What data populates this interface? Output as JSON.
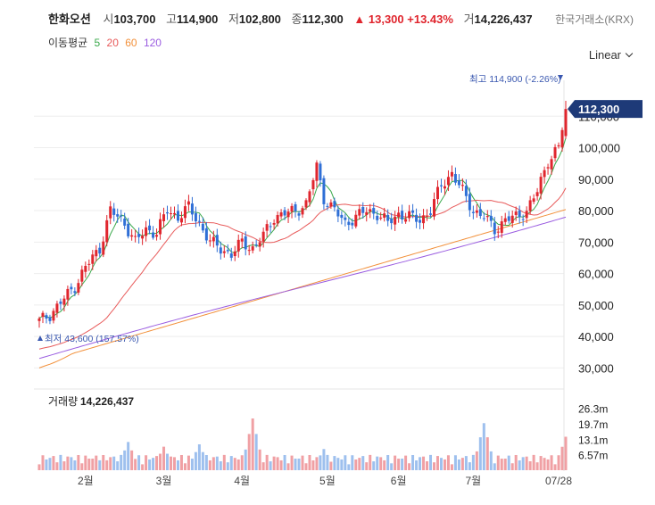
{
  "header": {
    "name": "한화오션",
    "open_label": "시",
    "open": "103,700",
    "high_label": "고",
    "high": "114,900",
    "low_label": "저",
    "low": "102,800",
    "close_label": "종",
    "close": "112,300",
    "change": "▲ 13,300 +13.43%",
    "volume_label": "거",
    "volume": "14,226,437"
  },
  "exchange": "한국거래소(KRX)",
  "scale": {
    "label": "Linear"
  },
  "ma_legend": {
    "title": "이동평균",
    "items": [
      "5",
      "20",
      "60",
      "120"
    ]
  },
  "colors": {
    "up": "#e0262e",
    "down": "#2f6fd6",
    "ma5": "#3aa94b",
    "ma20": "#e85b5b",
    "ma60": "#f2903a",
    "ma120": "#9a5ce0",
    "badge": "#1e3a78",
    "annot": "#3a58b0"
  },
  "chart_data": {
    "type": "candlestick",
    "title": "한화오션",
    "ylim": [
      25000,
      120000
    ],
    "y_ticks": [
      30000,
      40000,
      50000,
      60000,
      70000,
      80000,
      90000,
      100000,
      110000
    ],
    "y_tick_labels": [
      "30,000",
      "40,000",
      "50,000",
      "60,000",
      "70,000",
      "80,000",
      "90,000",
      "100,000",
      "110,000"
    ],
    "x_tick_labels": [
      "2월",
      "3월",
      "4월",
      "5월",
      "6월",
      "7월",
      "07/28"
    ],
    "current_price_label": "112,300",
    "annotations": {
      "max": "최고 114,900 (-2.26%)",
      "min": "최저 43,600 (157.57%)"
    },
    "series_close_points": [
      [
        0,
        44800
      ],
      [
        3,
        47000
      ],
      [
        7,
        52000
      ],
      [
        10,
        56000
      ],
      [
        13,
        62000
      ],
      [
        17,
        68000
      ],
      [
        20,
        80000
      ],
      [
        24,
        76000
      ],
      [
        27,
        70000
      ],
      [
        30,
        74000
      ],
      [
        33,
        73000
      ],
      [
        36,
        80000
      ],
      [
        39,
        78000
      ],
      [
        42,
        81000
      ],
      [
        45,
        76000
      ],
      [
        48,
        70000
      ],
      [
        51,
        68000
      ],
      [
        54,
        66000
      ],
      [
        57,
        70000
      ],
      [
        60,
        68000
      ],
      [
        63,
        72000
      ],
      [
        66,
        78000
      ],
      [
        69,
        79000
      ],
      [
        72,
        80000
      ],
      [
        75,
        82000
      ],
      [
        78,
        94000
      ],
      [
        80,
        84000
      ],
      [
        83,
        80000
      ],
      [
        86,
        76000
      ],
      [
        89,
        78000
      ],
      [
        92,
        80000
      ],
      [
        95,
        79000
      ],
      [
        98,
        76000
      ],
      [
        101,
        79000
      ],
      [
        104,
        78000
      ],
      [
        107,
        77000
      ],
      [
        110,
        80000
      ],
      [
        113,
        88000
      ],
      [
        116,
        92000
      ],
      [
        119,
        86000
      ],
      [
        122,
        80000
      ],
      [
        125,
        78000
      ],
      [
        128,
        74000
      ],
      [
        131,
        77000
      ],
      [
        134,
        78000
      ],
      [
        137,
        80000
      ],
      [
        140,
        86000
      ],
      [
        143,
        96000
      ],
      [
        146,
        100000
      ],
      [
        148,
        112300
      ]
    ],
    "volume": {
      "label": "거래량",
      "value": "14,226,437",
      "ylim": [
        0,
        33000000
      ],
      "y_tick_labels": [
        "26.3m",
        "19.7m",
        "13.1m",
        "6.57m"
      ],
      "y_ticks": [
        26300000,
        19700000,
        13100000,
        6570000
      ],
      "spikes": [
        [
          18,
          6000000
        ],
        [
          25,
          12000000
        ],
        [
          35,
          10000000
        ],
        [
          45,
          11000000
        ],
        [
          60,
          22000000
        ],
        [
          80,
          9000000
        ],
        [
          95,
          3000000
        ],
        [
          125,
          20000000
        ],
        [
          148,
          14226437
        ]
      ]
    }
  }
}
